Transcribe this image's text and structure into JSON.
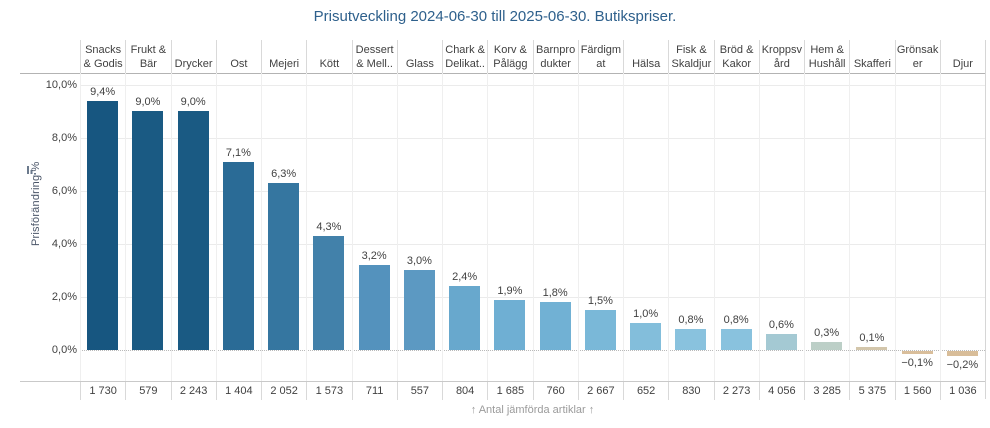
{
  "title": "Prisutveckling 2024-06-30 till 2025-06-30. Butikspriser.",
  "y_axis": {
    "label": "Prisförändring %",
    "sort_icon": "sort-descending-icon",
    "tick_labels": [
      "10,0%",
      "8,0%",
      "6,0%",
      "4,0%",
      "2,0%",
      "0,0%"
    ],
    "tick_values": [
      10,
      8,
      6,
      4,
      2,
      0
    ]
  },
  "footer": {
    "caption": "↑ Antal jämförda artiklar ↑"
  },
  "colors": {
    "title_text": "#2e608c",
    "body_text": "#414141",
    "caption_text": "#9b9b9b",
    "axis_label_text": "#4a5568"
  },
  "chart_data": {
    "type": "bar",
    "title": "Prisutveckling 2024-06-30 till 2025-06-30. Butikspriser.",
    "xlabel": "",
    "ylabel": "Prisförändring %",
    "ylim": [
      -1.2,
      10.5
    ],
    "grid": true,
    "yticks": [
      10,
      8,
      6,
      4,
      2,
      0
    ],
    "ytick_labels": [
      "10,0%",
      "8,0%",
      "6,0%",
      "4,0%",
      "2,0%",
      "0,0%"
    ],
    "categories": [
      "Snacks & Godis",
      "Frukt & Bär",
      "Drycker",
      "Ost",
      "Mejeri",
      "Kött",
      "Dessert & Mell..",
      "Glass",
      "Chark & Delikat..",
      "Korv & Pålägg",
      "Barnprodukter",
      "Färdigmat",
      "Hälsa",
      "Fisk & Skaldjur",
      "Bröd & Kakor",
      "Kroppsvård",
      "Hem & Hushåll",
      "Skafferi",
      "Grönsaker",
      "Djur"
    ],
    "category_lines": [
      [
        "Snacks",
        "& Godis"
      ],
      [
        "Frukt &",
        "Bär"
      ],
      [
        "Drycker"
      ],
      [
        "Ost"
      ],
      [
        "Mejeri"
      ],
      [
        "Kött"
      ],
      [
        "Dessert",
        "& Mell.."
      ],
      [
        "Glass"
      ],
      [
        "Chark &",
        "Delikat.."
      ],
      [
        "Korv &",
        "Pålägg"
      ],
      [
        "Barnpro",
        "dukter"
      ],
      [
        "Färdigm",
        "at"
      ],
      [
        "Hälsa"
      ],
      [
        "Fisk &",
        "Skaldjur"
      ],
      [
        "Bröd &",
        "Kakor"
      ],
      [
        "Kroppsv",
        "ård"
      ],
      [
        "Hem &",
        "Hushåll"
      ],
      [
        "Skafferi"
      ],
      [
        "Grönsak",
        "er"
      ],
      [
        "Djur"
      ]
    ],
    "values": [
      9.4,
      9.0,
      9.0,
      7.1,
      6.3,
      4.3,
      3.2,
      3.0,
      2.4,
      1.9,
      1.8,
      1.5,
      1.0,
      0.8,
      0.8,
      0.6,
      0.3,
      0.1,
      -0.1,
      -0.2
    ],
    "value_labels": [
      "9,4%",
      "9,0%",
      "9,0%",
      "7,1%",
      "6,3%",
      "4,3%",
      "3,2%",
      "3,0%",
      "2,4%",
      "1,9%",
      "1,8%",
      "1,5%",
      "1,0%",
      "0,8%",
      "0,8%",
      "0,6%",
      "0,3%",
      "0,1%",
      "−0,1%",
      "−0,2%"
    ],
    "bar_colors": [
      "#175680",
      "#1a5a83",
      "#1a5a83",
      "#2a6b96",
      "#3576a0",
      "#4281aa",
      "#5492bd",
      "#5c99c2",
      "#68a8cd",
      "#6fafd3",
      "#71b1d4",
      "#7ab8d8",
      "#83bedb",
      "#89c2de",
      "#89c2de",
      "#a4c9d3",
      "#bccfc7",
      "#d3c6ab",
      "#d9be9b",
      "#d8bd99"
    ],
    "counts": [
      "1 730",
      "579",
      "2 243",
      "1 404",
      "2 052",
      "1 573",
      "711",
      "557",
      "804",
      "1 685",
      "760",
      "2 667",
      "652",
      "830",
      "2 273",
      "4 056",
      "3 285",
      "5 375",
      "1 560",
      "1 036"
    ],
    "counts_row_label": "Antal jämförda artiklar",
    "legend": "none"
  }
}
